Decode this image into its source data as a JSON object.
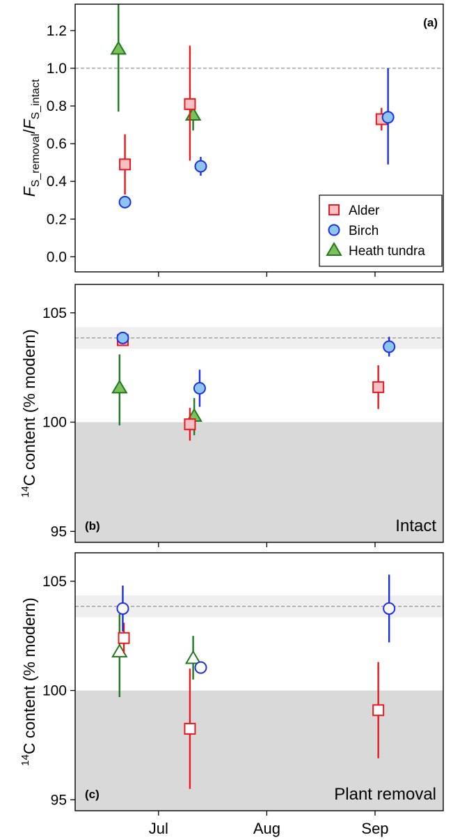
{
  "colors": {
    "alder": "#e8181e",
    "alder_fill": "#f7c0c4",
    "birch": "#1a2ee8",
    "birch_fill": "#8ec6f0",
    "heath": "#1f7a1c",
    "heath_fill": "#7cc05c",
    "shade_dark": "#d9d9d9",
    "shade_light": "#efefef",
    "ref_line": "#888888"
  },
  "x_axis": {
    "ticks": [
      {
        "label": "Jul",
        "x": 0
      },
      {
        "label": "Aug",
        "x": 1
      },
      {
        "label": "Sep",
        "x": 2
      }
    ],
    "range": [
      -0.77,
      2.63
    ]
  },
  "chart_data": [
    {
      "id": "a",
      "type": "scatter",
      "panel_label": "(a)",
      "corner_label": "",
      "ylabel_parts": {
        "f1": "F",
        "s1": "S_removal",
        "slash": "/",
        "f2": "F",
        "s2": "S_intact"
      },
      "ylim": [
        -0.08,
        1.34
      ],
      "yticks": [
        0.0,
        0.2,
        0.4,
        0.6,
        0.8,
        1.0,
        1.2
      ],
      "ytick_labels": [
        "0.0",
        "0.2",
        "0.4",
        "0.6",
        "0.8",
        "1.0",
        "1.2"
      ],
      "ref_line": 1.0,
      "bands": [],
      "filled": true,
      "legend": {
        "position": "bottom-right",
        "entries": [
          {
            "label": "Alder",
            "series": "alder"
          },
          {
            "label": "Birch",
            "series": "birch"
          },
          {
            "label": "Heath tundra",
            "series": "heath"
          }
        ]
      },
      "series": [
        {
          "name": "Alder",
          "key": "alder",
          "marker": "square",
          "points": [
            {
              "x": -0.31,
              "y": 0.49,
              "lo": 0.33,
              "hi": 0.65
            },
            {
              "x": 0.29,
              "y": 0.81,
              "lo": 0.51,
              "hi": 1.12
            },
            {
              "x": 2.06,
              "y": 0.73,
              "lo": 0.67,
              "hi": 0.79
            }
          ]
        },
        {
          "name": "Birch",
          "key": "birch",
          "marker": "circle",
          "points": [
            {
              "x": -0.31,
              "y": 0.29,
              "lo": 0.29,
              "hi": 0.29
            },
            {
              "x": 0.39,
              "y": 0.48,
              "lo": 0.43,
              "hi": 0.53
            },
            {
              "x": 2.12,
              "y": 0.74,
              "lo": 0.49,
              "hi": 1.0
            }
          ]
        },
        {
          "name": "Heath tundra",
          "key": "heath",
          "marker": "triangle",
          "points": [
            {
              "x": -0.37,
              "y": 1.1,
              "lo": 0.77,
              "hi": 1.4
            },
            {
              "x": 0.32,
              "y": 0.75,
              "lo": 0.67,
              "hi": 0.8
            }
          ]
        }
      ]
    },
    {
      "id": "b",
      "type": "scatter",
      "panel_label": "(b)",
      "corner_label": "Intact",
      "ylabel_parts": {
        "sup": "14",
        "main": "C content (% modern)"
      },
      "ylim": [
        94.5,
        106.3
      ],
      "yticks": [
        95,
        100,
        105
      ],
      "ytick_labels": [
        "95",
        "100",
        "105"
      ],
      "ref_line": 103.85,
      "bands": [
        {
          "from": 94.5,
          "to": 100.0,
          "kind": "dark"
        },
        {
          "from": 103.35,
          "to": 104.35,
          "kind": "light"
        }
      ],
      "filled": true,
      "series": [
        {
          "name": "Alder",
          "key": "alder",
          "marker": "square",
          "points": [
            {
              "x": -0.33,
              "y": 103.75,
              "lo": 103.75,
              "hi": 103.75
            },
            {
              "x": 0.29,
              "y": 99.9,
              "lo": 99.15,
              "hi": 100.65
            },
            {
              "x": 2.03,
              "y": 101.6,
              "lo": 100.6,
              "hi": 102.6
            }
          ]
        },
        {
          "name": "Birch",
          "key": "birch",
          "marker": "circle",
          "points": [
            {
              "x": -0.33,
              "y": 103.85,
              "lo": 103.85,
              "hi": 103.85
            },
            {
              "x": 0.38,
              "y": 101.55,
              "lo": 100.7,
              "hi": 102.4
            },
            {
              "x": 2.13,
              "y": 103.45,
              "lo": 103.0,
              "hi": 103.9
            }
          ]
        },
        {
          "name": "Heath tundra",
          "key": "heath",
          "marker": "triangle",
          "points": [
            {
              "x": -0.36,
              "y": 101.55,
              "lo": 99.85,
              "hi": 103.1
            },
            {
              "x": 0.33,
              "y": 100.25,
              "lo": 99.4,
              "hi": 101.1
            }
          ]
        }
      ]
    },
    {
      "id": "c",
      "type": "scatter",
      "panel_label": "(c)",
      "corner_label": "Plant removal",
      "ylabel_parts": {
        "sup": "14",
        "main": "C content (% modern)"
      },
      "ylim": [
        94.5,
        106.3
      ],
      "yticks": [
        95,
        100,
        105
      ],
      "ytick_labels": [
        "95",
        "100",
        "105"
      ],
      "ref_line": 103.85,
      "bands": [
        {
          "from": 94.5,
          "to": 100.0,
          "kind": "dark"
        },
        {
          "from": 103.35,
          "to": 104.35,
          "kind": "light"
        }
      ],
      "filled": false,
      "series": [
        {
          "name": "Alder",
          "key": "alder",
          "marker": "square",
          "points": [
            {
              "x": -0.32,
              "y": 102.4,
              "lo": 101.7,
              "hi": 103.1
            },
            {
              "x": 0.29,
              "y": 98.25,
              "lo": 95.5,
              "hi": 101.0
            },
            {
              "x": 2.03,
              "y": 99.1,
              "lo": 96.9,
              "hi": 101.3
            }
          ]
        },
        {
          "name": "Birch",
          "key": "birch",
          "marker": "circle",
          "points": [
            {
              "x": -0.33,
              "y": 103.75,
              "lo": 102.7,
              "hi": 104.8
            },
            {
              "x": 0.39,
              "y": 101.05,
              "lo": 101.05,
              "hi": 101.05
            },
            {
              "x": 2.13,
              "y": 103.75,
              "lo": 102.2,
              "hi": 105.3
            }
          ]
        },
        {
          "name": "Heath tundra",
          "key": "heath",
          "marker": "triangle",
          "points": [
            {
              "x": -0.36,
              "y": 101.75,
              "lo": 99.7,
              "hi": 103.5
            },
            {
              "x": 0.32,
              "y": 101.45,
              "lo": 100.5,
              "hi": 102.5
            }
          ]
        }
      ]
    }
  ]
}
